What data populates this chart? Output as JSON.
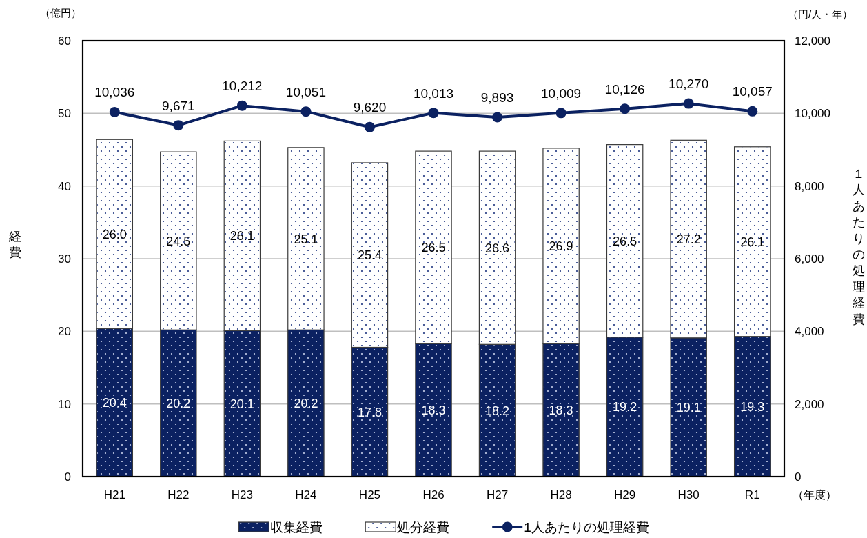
{
  "chart_data": {
    "type": "bar",
    "stacked": true,
    "categories": [
      "H21",
      "H22",
      "H23",
      "H24",
      "H25",
      "H26",
      "H27",
      "H28",
      "H29",
      "H30",
      "R1"
    ],
    "series": [
      {
        "name": "収集経費",
        "color": "#0b2161",
        "values": [
          20.4,
          20.2,
          20.1,
          20.2,
          17.8,
          18.3,
          18.2,
          18.3,
          19.2,
          19.1,
          19.3
        ],
        "value_labels": [
          "20.4",
          "20.2",
          "20.1",
          "20.2",
          "17.8",
          "18.3",
          "18.2",
          "18.3",
          "19.2",
          "19.1",
          "19.3"
        ]
      },
      {
        "name": "処分経費",
        "color": "#ffffff",
        "values": [
          26.0,
          24.5,
          26.1,
          25.1,
          25.4,
          26.5,
          26.6,
          26.9,
          26.5,
          27.2,
          26.1
        ],
        "value_labels": [
          "26.0",
          "24.5",
          "26.1",
          "25.1",
          "25.4",
          "26.5",
          "26.6",
          "26.9",
          "26.5",
          "27.2",
          "26.1"
        ]
      },
      {
        "name": "1人あたりの処理経費",
        "type": "line",
        "axis": "y2",
        "color": "#0b2161",
        "values": [
          10036,
          9671,
          10212,
          10051,
          9620,
          10013,
          9893,
          10009,
          10126,
          10270,
          10057
        ],
        "value_labels": [
          "10,036",
          "9,671",
          "10,212",
          "10,051",
          "9,620",
          "10,013",
          "9,893",
          "10,009",
          "10,126",
          "10,270",
          "10,057"
        ]
      }
    ],
    "ylim": [
      0,
      60
    ],
    "yticks": [
      0,
      10,
      20,
      30,
      40,
      50,
      60
    ],
    "y2lim": [
      0,
      12000
    ],
    "y2ticks": [
      0,
      {
        "value": 2000,
        "label": "2,000"
      },
      {
        "value": 4000,
        "label": "4,000"
      },
      {
        "value": 6000,
        "label": "6,000"
      },
      {
        "value": 8000,
        "label": "8,000"
      },
      {
        "value": 10000,
        "label": "10,000"
      },
      {
        "value": 12000,
        "label": "12,000"
      }
    ],
    "ylabel": "経費",
    "y2label": "１人あたりの処理経費",
    "xlabel": "（年度）",
    "annotations": [
      "（億円）",
      "（円/人・年）"
    ],
    "grid": "y",
    "legend": "bottom",
    "marker": "circle",
    "line_style": "solid"
  }
}
